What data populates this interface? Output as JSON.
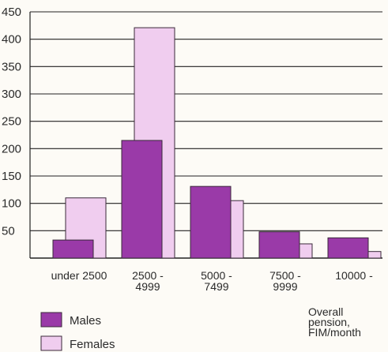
{
  "chart_data": {
    "type": "bar",
    "categories": [
      [
        "under 2500"
      ],
      [
        "2500 -",
        "4999"
      ],
      [
        "5000 -",
        "7499"
      ],
      [
        "7500 -",
        "9999"
      ],
      [
        "10000 -"
      ]
    ],
    "series": [
      {
        "name": "Males",
        "values": [
          33,
          215,
          131,
          48,
          37
        ]
      },
      {
        "name": "Females",
        "values": [
          110,
          421,
          105,
          26,
          12
        ]
      }
    ],
    "yticks": [
      50,
      100,
      150,
      200,
      250,
      300,
      350,
      400,
      450
    ],
    "ylim": [
      0,
      450
    ],
    "grid": true,
    "xlabel": [
      "Overall",
      "pension,",
      "FIM/month"
    ],
    "legend_position": "bottom-left",
    "colors": {
      "males": "#9a3aa8",
      "females": "#f0cdef",
      "grid": "#222222",
      "bar_stroke": "#3a2a3a"
    }
  }
}
